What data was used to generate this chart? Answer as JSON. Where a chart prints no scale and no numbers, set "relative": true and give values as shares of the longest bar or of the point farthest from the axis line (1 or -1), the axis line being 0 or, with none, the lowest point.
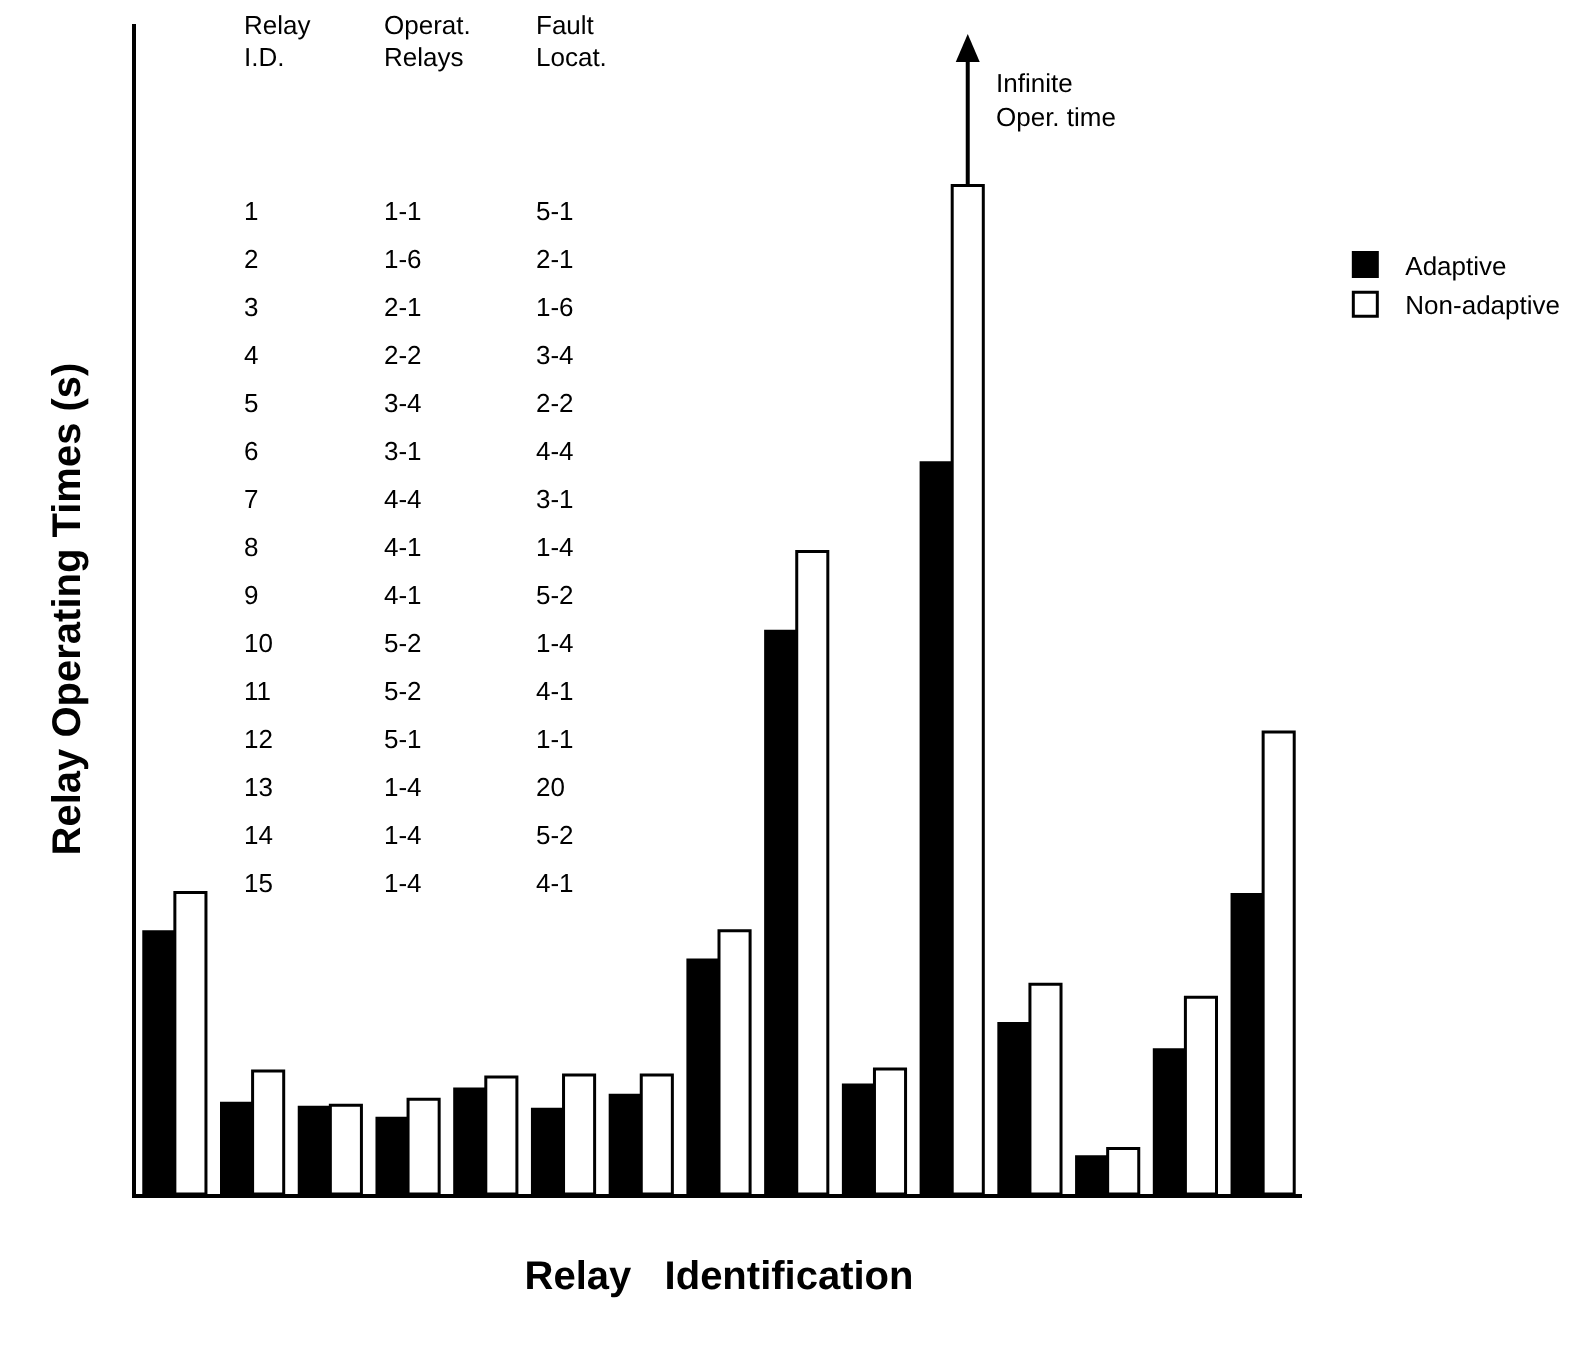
{
  "chart_data": {
    "type": "bar",
    "relative": true,
    "xlabel": "Relay   Identification",
    "ylabel": "Relay Operating Times (s)",
    "categories": [
      null,
      null,
      null,
      null,
      null,
      null,
      null,
      null,
      null,
      null,
      null,
      null,
      null,
      null,
      null
    ],
    "series": [
      {
        "name": "Adaptive",
        "color": "#000000",
        "values": [
          0.26,
          0.09,
          0.086,
          0.075,
          0.104,
          0.084,
          0.098,
          0.232,
          0.558,
          0.108,
          0.725,
          0.169,
          0.037,
          0.143,
          0.297
        ]
      },
      {
        "name": "Non-adaptive",
        "color": "#ffffff",
        "values": [
          0.299,
          0.122,
          0.088,
          0.094,
          0.116,
          0.118,
          0.118,
          0.261,
          0.637,
          0.124,
          1,
          0.208,
          0.045,
          0.195,
          0.458
        ]
      }
    ],
    "legend": "top right",
    "annotations": [
      "Relay\nI.D.",
      "Operat.\nRelays",
      "Fault\nLocat.",
      "1\n2\n3\n4\n5\n6\n7\n8\n9\n10\n11\n12\n13\n14\n15",
      "1-1\n1-6\n2-1\n2-2\n3-4\n3-1\n4-4\n4-1\n4-1\n5-2\n5-2\n5-1\n1-4\n1-4\n1-4",
      "5-1\n2-1\n1-6\n3-4\n2-2\n4-4\n3-1\n1-4\n5-2\n1-4\n4-1\n1-1\n20\n5-2\n4-1",
      "Infinite\nOper. time"
    ]
  }
}
